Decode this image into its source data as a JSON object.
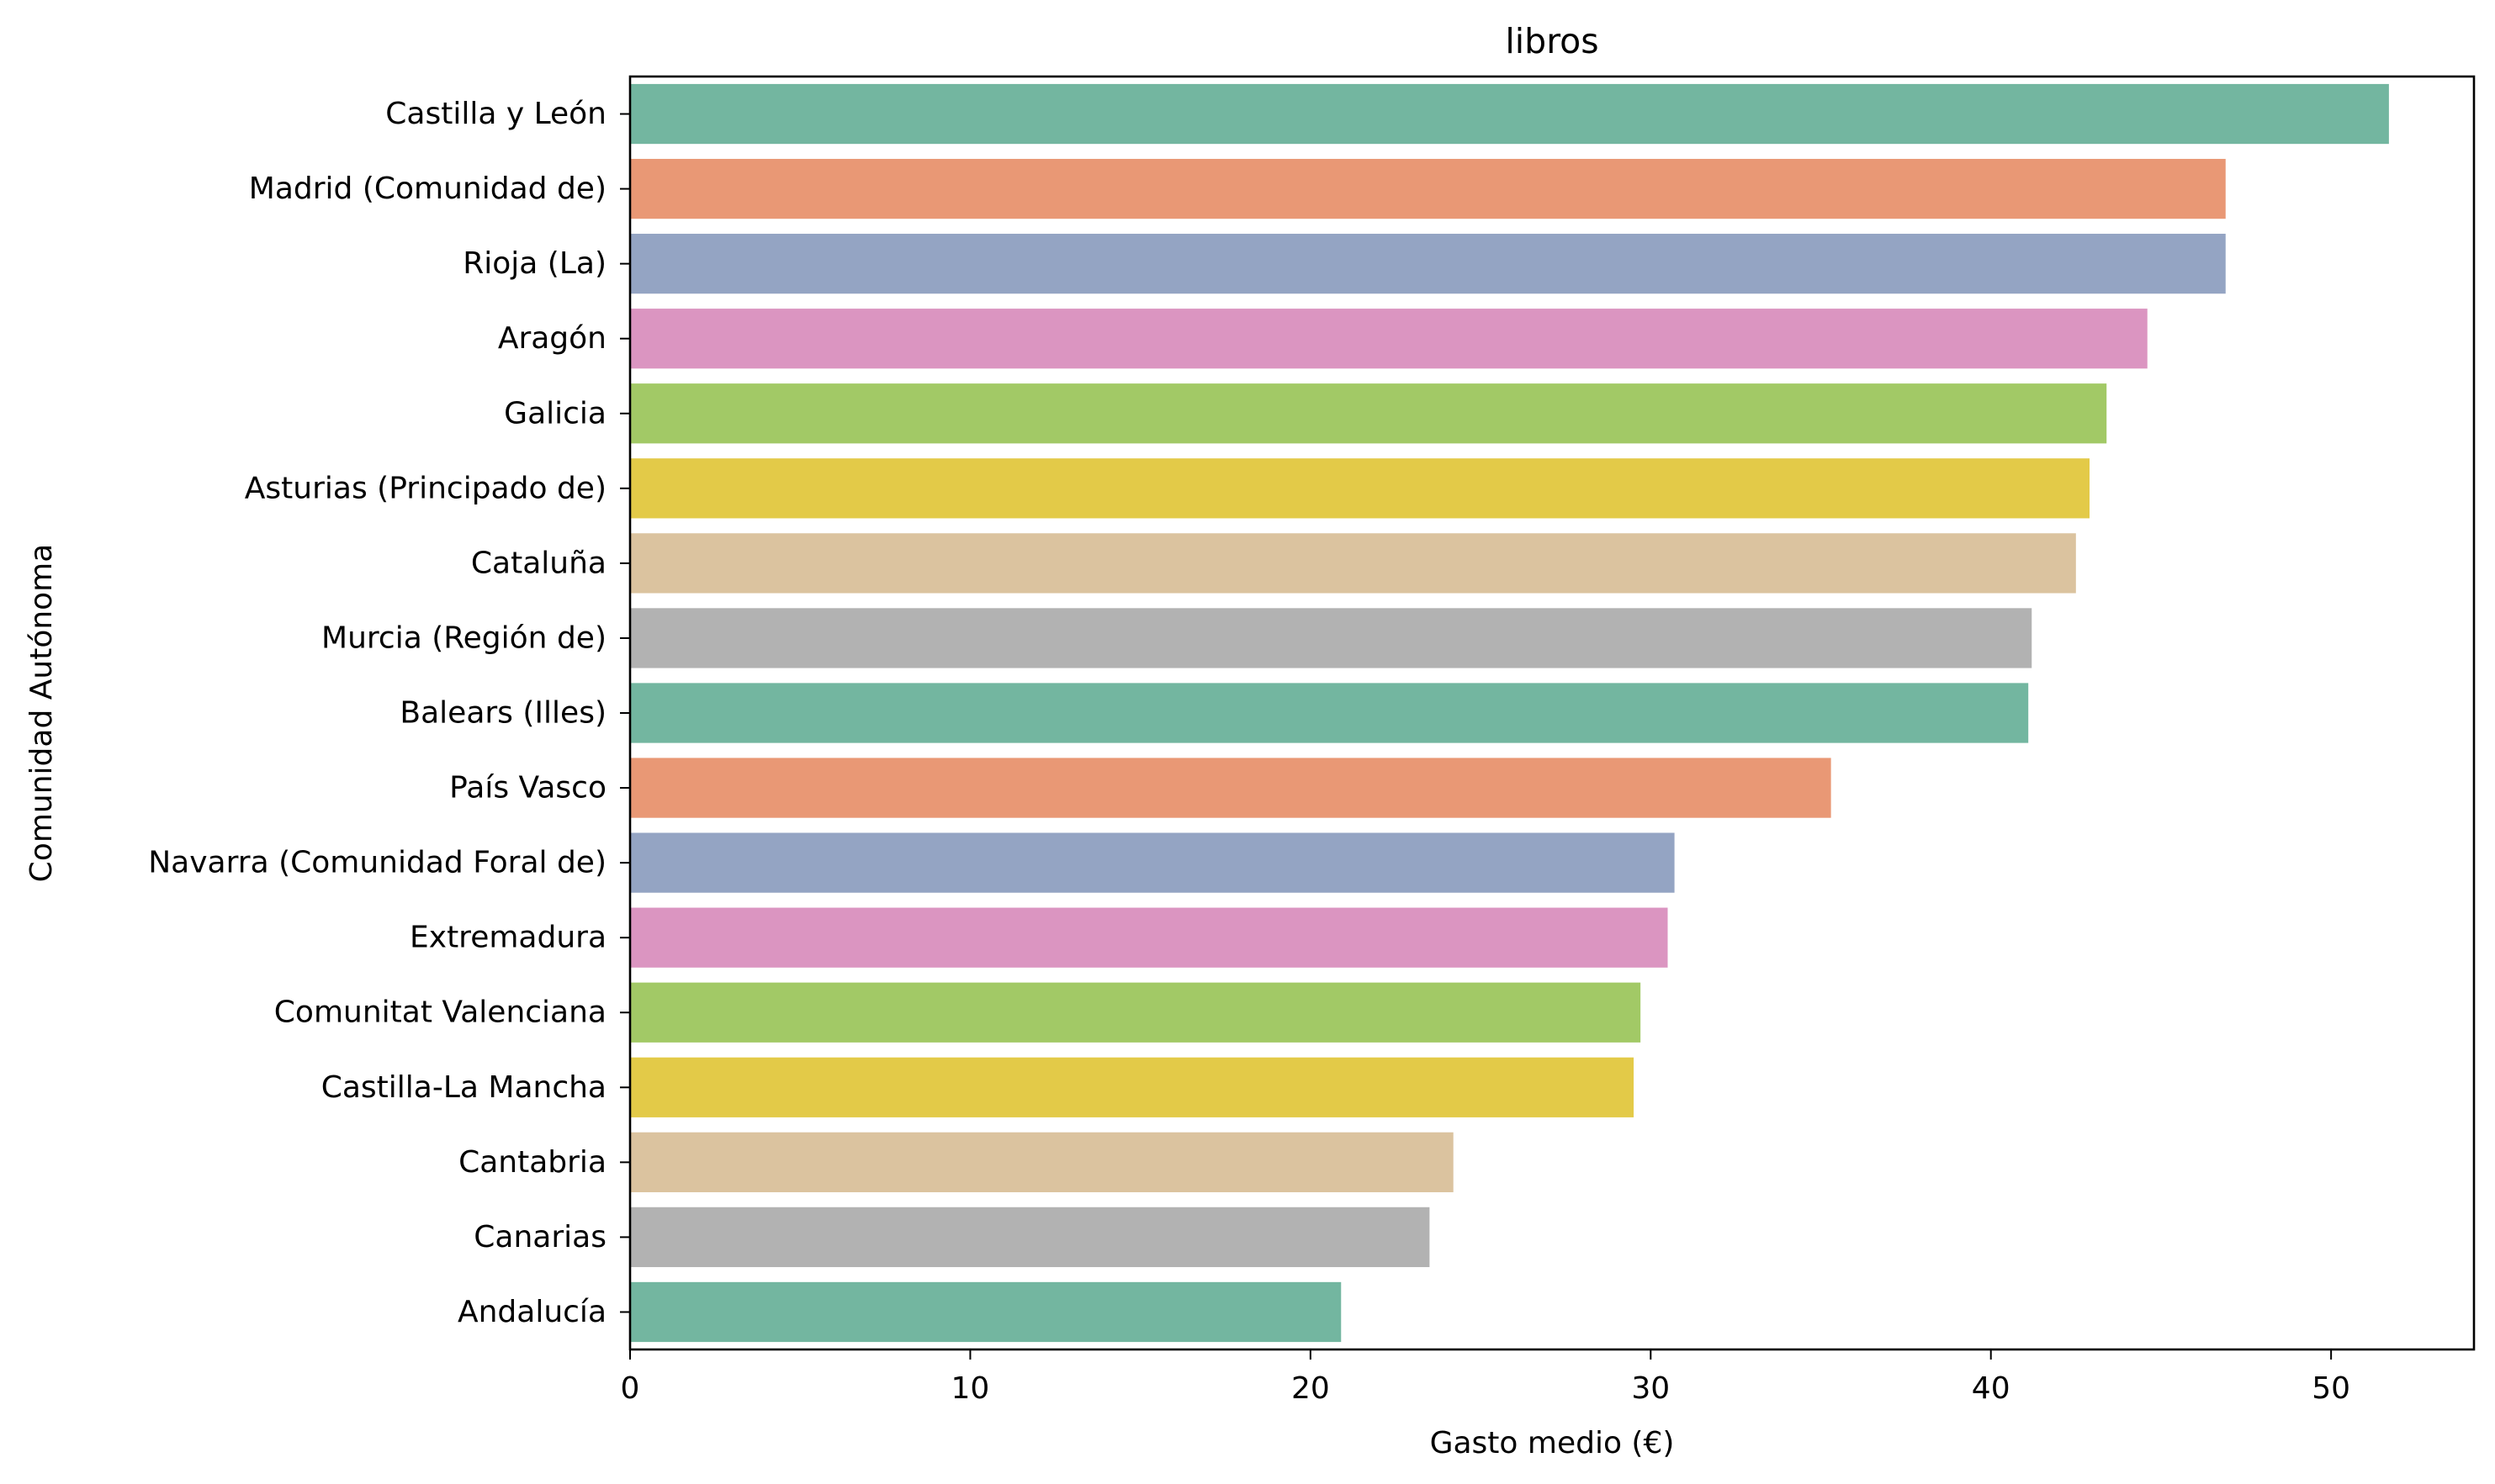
{
  "chart_data": {
    "type": "bar",
    "orientation": "horizontal",
    "title": "libros",
    "xlabel": "Gasto medio (€)",
    "ylabel": "Comunidad Autónoma",
    "xlim": [
      0,
      54.2
    ],
    "xticks": [
      0,
      10,
      20,
      30,
      40,
      50
    ],
    "grid": false,
    "legend": "none",
    "categories": [
      "Castilla y León",
      "Madrid (Comunidad de)",
      "Rioja (La)",
      "Aragón",
      "Galicia",
      "Asturias (Principado de)",
      "Cataluña",
      "Murcia (Región de)",
      "Balears (Illes)",
      "País Vasco",
      "Navarra (Comunidad Foral de)",
      "Extremadura",
      "Comunitat Valenciana",
      "Castilla-La Mancha",
      "Cantabria",
      "Canarias",
      "Andalucía"
    ],
    "values": [
      51.7,
      46.9,
      46.9,
      44.6,
      43.4,
      42.9,
      42.5,
      41.2,
      41.1,
      35.3,
      30.7,
      30.5,
      29.7,
      29.5,
      24.2,
      23.5,
      20.9
    ],
    "colors": [
      "#73b6a0",
      "#e99875",
      "#94a4c3",
      "#db95c1",
      "#a2c966",
      "#e3ca48",
      "#dbc39f",
      "#b2b2b2",
      "#73b6a0",
      "#e99875",
      "#94a4c3",
      "#db95c1",
      "#a2c966",
      "#e3ca48",
      "#dbc39f",
      "#b2b2b2",
      "#73b6a0"
    ]
  }
}
